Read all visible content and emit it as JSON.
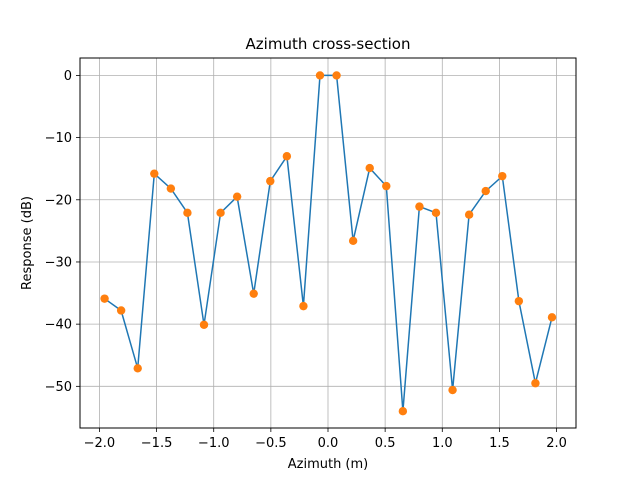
{
  "chart_data": {
    "type": "line",
    "title": "Azimuth cross-section",
    "xlabel": "Azimuth (m)",
    "ylabel": "Response (dB)",
    "xlim": [
      -2.17,
      2.17
    ],
    "ylim": [
      -56.7,
      2.8
    ],
    "grid": true,
    "x_ticks": [
      -2.0,
      -1.5,
      -1.0,
      -0.5,
      0.0,
      0.5,
      1.0,
      1.5,
      2.0
    ],
    "x_tick_labels": [
      "−2.0",
      "−1.5",
      "−1.0",
      "−0.5",
      "0.0",
      "0.5",
      "1.0",
      "1.5",
      "2.0"
    ],
    "y_ticks": [
      0,
      -10,
      -20,
      -30,
      -40,
      -50
    ],
    "y_tick_labels": [
      "0",
      "−10",
      "−20",
      "−30",
      "−40",
      "−50"
    ],
    "line_color": "#1f77b4",
    "marker_color": "#ff7f0e",
    "series": [
      {
        "x": [
          -1.955,
          -1.81,
          -1.665,
          -1.52,
          -1.375,
          -1.23,
          -1.085,
          -0.94,
          -0.795,
          -0.65,
          -0.505,
          -0.36,
          -0.215,
          -0.07,
          0.075,
          0.22,
          0.365,
          0.51,
          0.655,
          0.8,
          0.945,
          1.09,
          1.235,
          1.38,
          1.525,
          1.67,
          1.815,
          1.96
        ],
        "y": [
          -35.9,
          -37.8,
          -47.1,
          -15.8,
          -18.2,
          -22.1,
          -40.1,
          -22.1,
          -19.5,
          -35.1,
          -17.0,
          -13.0,
          -37.1,
          0.0,
          0.0,
          -26.6,
          -14.9,
          -17.8,
          -54.0,
          -21.1,
          -22.1,
          -50.6,
          -22.4,
          -18.6,
          -16.2,
          -36.3,
          -49.5,
          -38.9
        ]
      }
    ]
  }
}
